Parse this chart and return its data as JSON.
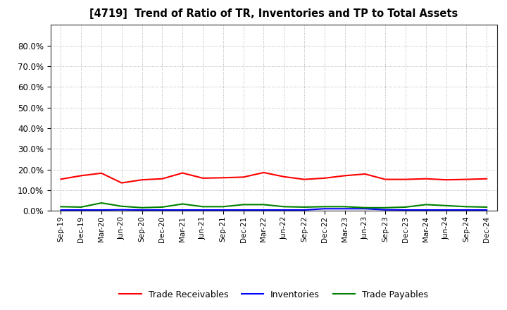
{
  "title": "[4719]  Trend of Ratio of TR, Inventories and TP to Total Assets",
  "x_labels": [
    "Sep-19",
    "Dec-19",
    "Mar-20",
    "Jun-20",
    "Sep-20",
    "Dec-20",
    "Mar-21",
    "Jun-21",
    "Sep-21",
    "Dec-21",
    "Mar-22",
    "Jun-22",
    "Sep-22",
    "Dec-22",
    "Mar-23",
    "Jun-23",
    "Sep-23",
    "Dec-23",
    "Mar-24",
    "Jun-24",
    "Sep-24",
    "Dec-24"
  ],
  "trade_receivables": [
    0.153,
    0.17,
    0.182,
    0.135,
    0.15,
    0.155,
    0.183,
    0.158,
    0.16,
    0.163,
    0.185,
    0.165,
    0.152,
    0.158,
    0.17,
    0.178,
    0.152,
    0.152,
    0.155,
    0.15,
    0.152,
    0.155
  ],
  "inventories": [
    0.004,
    0.004,
    0.004,
    0.005,
    0.004,
    0.004,
    0.004,
    0.004,
    0.004,
    0.004,
    0.004,
    0.004,
    0.004,
    0.01,
    0.01,
    0.01,
    0.005,
    0.004,
    0.004,
    0.004,
    0.004,
    0.004
  ],
  "trade_payables": [
    0.02,
    0.018,
    0.038,
    0.022,
    0.015,
    0.018,
    0.033,
    0.02,
    0.02,
    0.03,
    0.03,
    0.02,
    0.018,
    0.02,
    0.02,
    0.015,
    0.015,
    0.018,
    0.03,
    0.025,
    0.02,
    0.018
  ],
  "tr_color": "#ff0000",
  "inv_color": "#0000ff",
  "tp_color": "#008000",
  "ylim": [
    0.0,
    0.9
  ],
  "yticks": [
    0.0,
    0.1,
    0.2,
    0.3,
    0.4,
    0.5,
    0.6,
    0.7,
    0.8
  ],
  "background_color": "#ffffff",
  "grid_color": "#999999",
  "legend_labels": [
    "Trade Receivables",
    "Inventories",
    "Trade Payables"
  ]
}
